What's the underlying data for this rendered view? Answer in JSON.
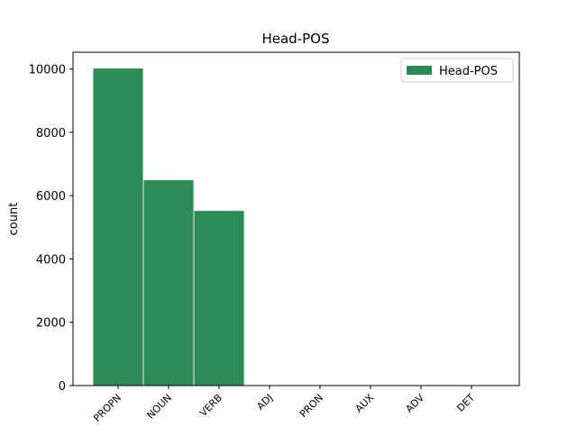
{
  "chart_data": {
    "type": "bar",
    "title": "Head-POS",
    "y_label": "count",
    "categories": [
      "PROPN",
      "NOUN",
      "VERB",
      "ADJ",
      "PRON",
      "AUX",
      "ADV",
      "DET"
    ],
    "series": [
      {
        "name": "Head-POS",
        "color": "#2e8b57",
        "values": [
          10030,
          6500,
          5530,
          0,
          0,
          0,
          0,
          0
        ]
      }
    ],
    "ylim": [
      0,
      10530
    ],
    "yticks": [
      0,
      2000,
      4000,
      6000,
      8000,
      10000
    ],
    "legend": "upper right",
    "grid": false
  }
}
